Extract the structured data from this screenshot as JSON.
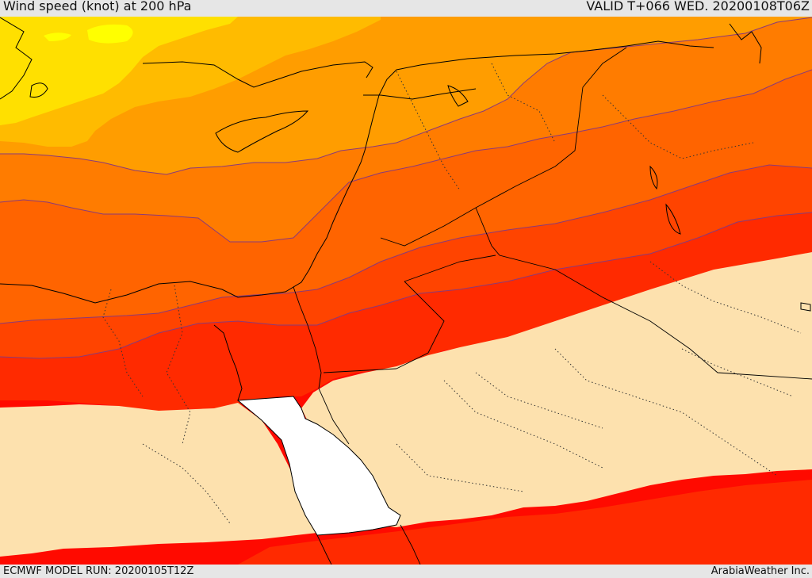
{
  "header": {
    "title": "Wind speed (knot) at 200 hPa",
    "valid": "VALID T+066 WED. 20200108T06Z"
  },
  "footer": {
    "model_run": "ECMWF MODEL RUN: 20200105T12Z",
    "credit": "ArabiaWeather Inc."
  },
  "colors": {
    "band_yellow_bright": "#ffff00",
    "band_yellow": "#ffe000",
    "band_amber": "#ffbb00",
    "band_orange_light": "#ff9d00",
    "band_orange": "#ff7c00",
    "band_orange_dark": "#ff6400",
    "band_red_orange": "#ff4400",
    "band_red_light": "#ff2a00",
    "band_red": "#ff0a00",
    "band_red_deep": "#ff0000",
    "band_calm": "#fde1ae",
    "sea_uncoloured": "#ffffff",
    "contour_line": "#8a3a7a",
    "coastline": "#000000"
  }
}
